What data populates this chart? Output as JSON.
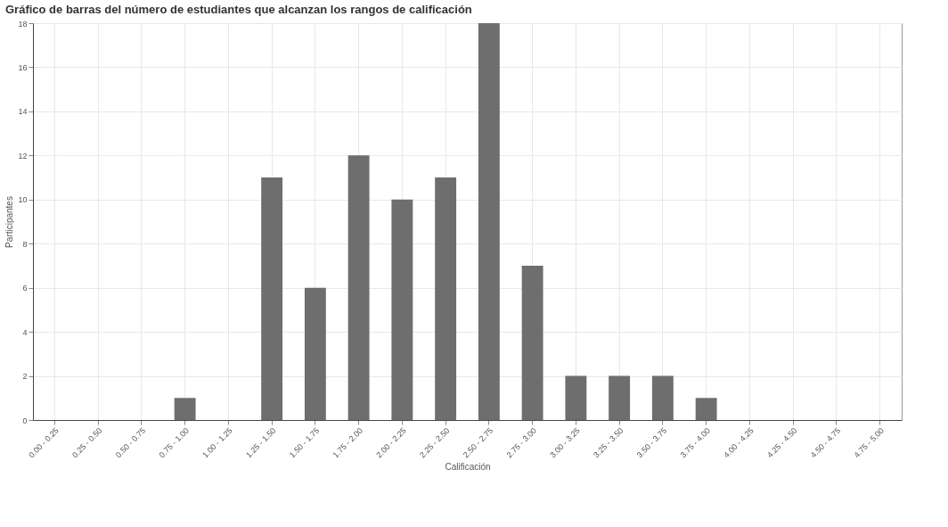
{
  "chart_data": {
    "type": "bar",
    "title": "Gráfico de barras del número de estudiantes que alcanzan los rangos de calificación",
    "xlabel": "Calificación",
    "ylabel": "Participantes",
    "categories": [
      "0.00 - 0.25",
      "0.25 - 0.50",
      "0.50 - 0.75",
      "0.75 - 1.00",
      "1.00 - 1.25",
      "1.25 - 1.50",
      "1.50 - 1.75",
      "1.75 - 2.00",
      "2.00 - 2.25",
      "2.25 - 2.50",
      "2.50 - 2.75",
      "2.75 - 3.00",
      "3.00 - 3.25",
      "3.25 - 3.50",
      "3.50 - 3.75",
      "3.75 - 4.00",
      "4.00 - 4.25",
      "4.25 - 4.50",
      "4.50 - 4.75",
      "4.75 - 5.00"
    ],
    "values": [
      0,
      0,
      0,
      1,
      0,
      11,
      6,
      12,
      10,
      11,
      18,
      7,
      2,
      2,
      2,
      1,
      0,
      0,
      0,
      0
    ],
    "color": "#6e6e6e",
    "ylim": [
      0,
      18
    ],
    "yticks": [
      0,
      2,
      4,
      6,
      8,
      10,
      12,
      14,
      16,
      18
    ],
    "grid": true
  }
}
